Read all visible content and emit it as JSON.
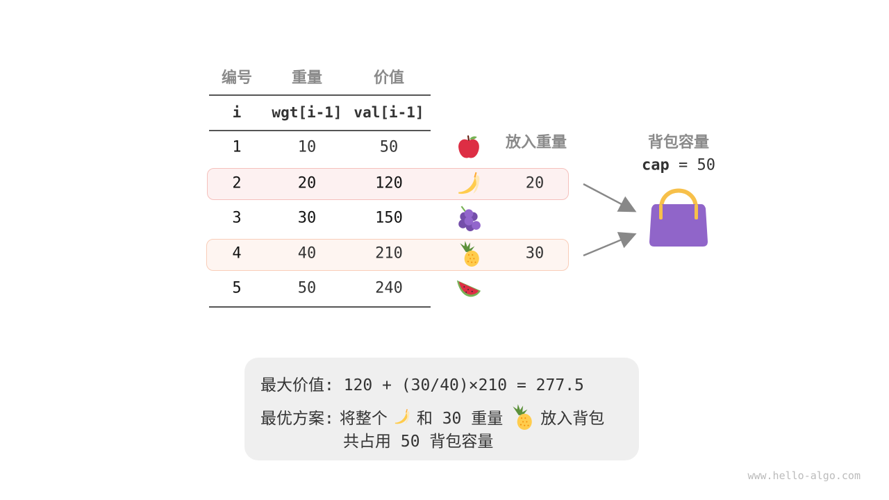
{
  "headers": {
    "id": "编号",
    "weight": "重量",
    "value": "价值"
  },
  "code_headers": {
    "i": "i",
    "wgt": "wgt[i-1]",
    "val": "val[i-1]"
  },
  "put_weight_header": "放入重量",
  "items": [
    {
      "i": "1",
      "wgt": "10",
      "val": "50",
      "fruit": "apple-icon",
      "put": ""
    },
    {
      "i": "2",
      "wgt": "20",
      "val": "120",
      "fruit": "banana-icon",
      "put": "20"
    },
    {
      "i": "3",
      "wgt": "30",
      "val": "150",
      "fruit": "grapes-icon",
      "put": ""
    },
    {
      "i": "4",
      "wgt": "40",
      "val": "210",
      "fruit": "pineapple-icon",
      "put": "30"
    },
    {
      "i": "5",
      "wgt": "50",
      "val": "240",
      "fruit": "watermelon-icon",
      "put": ""
    }
  ],
  "knapsack": {
    "title": "背包容量",
    "cap_label": "cap",
    "cap_eq": "= 50",
    "icon": "handbag-icon",
    "color": "#9065c9"
  },
  "summary": {
    "max_label": "最大价值:",
    "max_expr": "120 + (30/40)×210 = 277.5",
    "plan_label": "最优方案:",
    "plan_a": "将整个",
    "plan_b": "和 30 重量",
    "plan_c": "放入背包",
    "plan_line2": "共占用 50 背包容量"
  },
  "footer": "www.hello-algo.com",
  "colors": {
    "row2_bg": "#fdf1f1",
    "row2_border": "#f5c0bc",
    "row4_bg": "#fef5f1",
    "row4_border": "#f9cdb8",
    "arrow": "#888888"
  }
}
